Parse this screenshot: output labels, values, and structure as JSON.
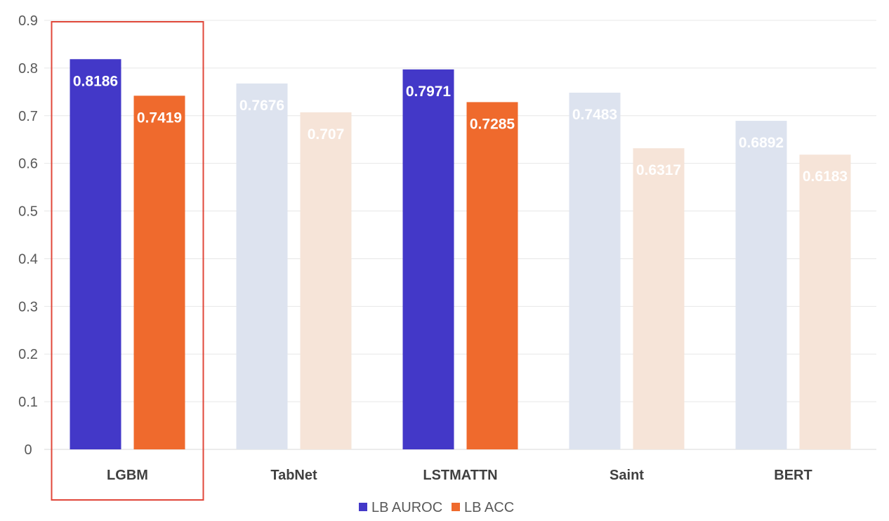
{
  "chart_data": {
    "type": "bar",
    "categories": [
      "LGBM",
      "TabNet",
      "LSTMATTN",
      "Saint",
      "BERT"
    ],
    "series": [
      {
        "name": "LB AUROC",
        "color": "#4338c8",
        "faded_color": "#dde3ef",
        "values": [
          0.8186,
          0.7676,
          0.7971,
          0.7483,
          0.6892
        ],
        "labels": [
          "0.8186",
          "0.7676",
          "0.7971",
          "0.7483",
          "0.6892"
        ]
      },
      {
        "name": "LB ACC",
        "color": "#ef6a2d",
        "faded_color": "#f6e4d8",
        "values": [
          0.7419,
          0.707,
          0.7285,
          0.6317,
          0.6183
        ],
        "labels": [
          "0.7419",
          "0.707",
          "0.7285",
          "0.6317",
          "0.6183"
        ]
      }
    ],
    "highlighted_categories": [
      "LGBM",
      "LSTMATTN"
    ],
    "boxed_category": "LGBM",
    "box_color": "#e0473a",
    "ylim": [
      0,
      0.9
    ],
    "yticks": [
      0,
      0.1,
      0.2,
      0.3,
      0.4,
      0.5,
      0.6,
      0.7,
      0.8,
      0.9
    ],
    "ytick_labels": [
      "0",
      "0.1",
      "0.2",
      "0.3",
      "0.4",
      "0.5",
      "0.6",
      "0.7",
      "0.8",
      "0.9"
    ],
    "grid": true,
    "legend_position": "bottom-center",
    "title": "",
    "xlabel": "",
    "ylabel": ""
  }
}
